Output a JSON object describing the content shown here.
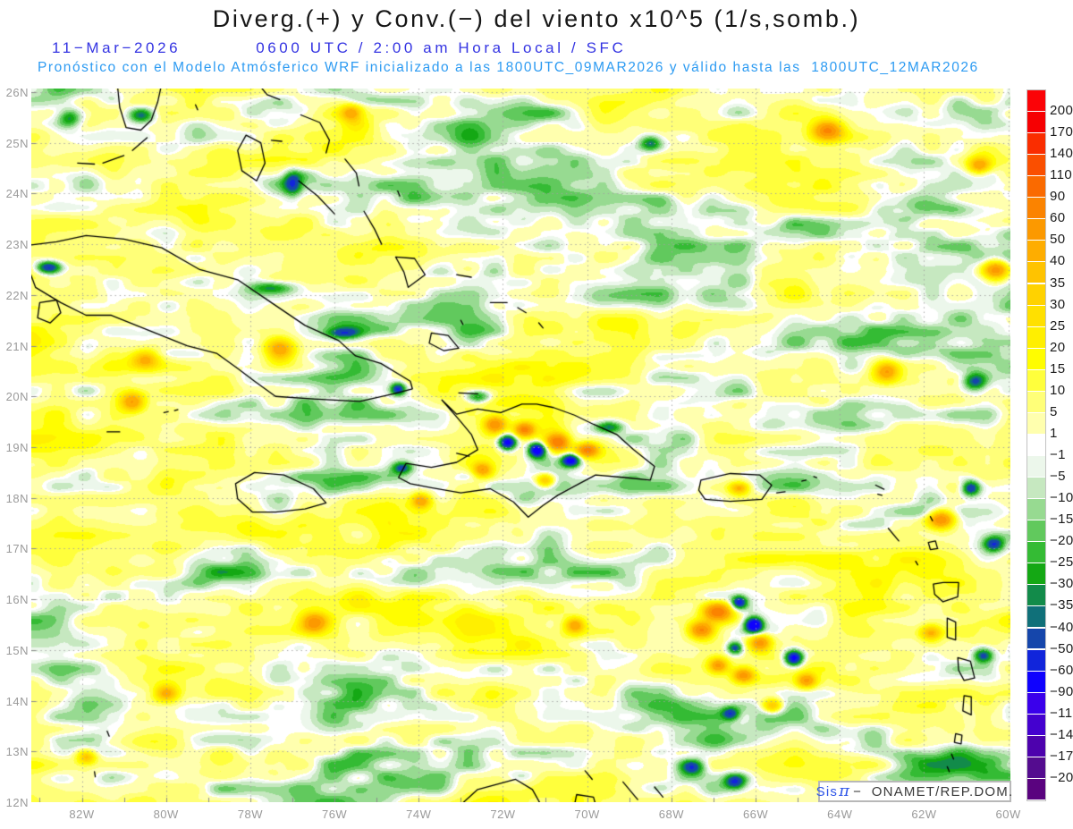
{
  "title": "Diverg.(+) y Conv.(−) del viento x10^5 (1/s,somb.)",
  "header": {
    "date": "11−Mar−2026",
    "time": "0600 UTC / 2:00 am Hora Local / SFC",
    "forecast": "Pronóstico con el Modelo Atmósferico WRF inicializado a las 1800UTC_09MAR2026 y válido hasta las  1800UTC_12MAR2026"
  },
  "attribution": {
    "prefix": "Sis",
    "pi": "π",
    "rest": "−  ONAMET/REP.DOM."
  },
  "chart_data": {
    "type": "heatmap",
    "title": "Diverg.(+) y Conv.(−) del viento x10^5 (1/s,somb.)",
    "units": "x10^5 (1/s), shaded",
    "level": "SFC",
    "valid": "11−Mar−2026 0600 UTC / 2:00 am Hora Local",
    "model_run": "1800UTC_09MAR2026",
    "valid_until": "1800UTC_12MAR2026",
    "lat_ticks": [
      "26N",
      "25N",
      "24N",
      "23N",
      "22N",
      "21N",
      "20N",
      "19N",
      "18N",
      "17N",
      "16N",
      "15N",
      "14N",
      "13N",
      "12N"
    ],
    "lon_ticks": [
      "82W",
      "80W",
      "78W",
      "76W",
      "74W",
      "72W",
      "70W",
      "68W",
      "66W",
      "64W",
      "62W",
      "60W"
    ],
    "extent": {
      "lon_min": -83.2,
      "lon_max": -59.95,
      "lat_min": 12.0,
      "lat_max": 26.07
    },
    "grid": {
      "lat_step": 1,
      "lon_step": 2
    },
    "legend_labels": [
      "200",
      "170",
      "140",
      "110",
      "90",
      "60",
      "50",
      "40",
      "35",
      "30",
      "25",
      "20",
      "15",
      "10",
      "5",
      "1",
      "−1",
      "−5",
      "−10",
      "−15",
      "−20",
      "−25",
      "−30",
      "−35",
      "−40",
      "−50",
      "−60",
      "−90",
      "−110",
      "−140",
      "−170",
      "−200"
    ],
    "legend_colors": [
      "#FB0307",
      "#F60002",
      "#FA2D00",
      "#FA4F00",
      "#FA6A00",
      "#FB8300",
      "#FC9900",
      "#FEAD00",
      "#FFC300",
      "#FFD200",
      "#FFE000",
      "#FFEF00",
      "#FFFD00",
      "#FFFF3C",
      "#FFFF78",
      "#FFFFAE",
      "#FFFFFF",
      "#ECF7EB",
      "#C6E8C0",
      "#97DA91",
      "#61C95D",
      "#34BB34",
      "#14A814",
      "#128B4A",
      "#107079",
      "#1546AB",
      "#1125DB",
      "#0F02FE",
      "#3A00EB",
      "#4401CF",
      "#4D02AD",
      "#540C8F",
      "#5A037F"
    ],
    "hotspot_format": [
      "lon",
      "lat",
      "amplitude_x10^5_s-1",
      "sigma_x_px",
      "sigma_y_px"
    ],
    "hotspots": [
      [
        -82.8,
        22.55,
        -60,
        10,
        5
      ],
      [
        -80.8,
        19.9,
        48,
        10,
        8
      ],
      [
        -77.3,
        20.9,
        45,
        12,
        9
      ],
      [
        -80.5,
        20.75,
        40,
        12,
        8
      ],
      [
        -75.6,
        25.6,
        40,
        9,
        7
      ],
      [
        -64.3,
        25.25,
        55,
        12,
        8
      ],
      [
        -60.7,
        24.55,
        42,
        9,
        7
      ],
      [
        -60.3,
        22.5,
        58,
        11,
        9
      ],
      [
        -62.9,
        20.5,
        45,
        10,
        8
      ],
      [
        -60.8,
        20.3,
        -45,
        9,
        7
      ],
      [
        -72.2,
        19.45,
        55,
        9,
        7
      ],
      [
        -71.9,
        19.1,
        -75,
        7,
        6
      ],
      [
        -71.5,
        19.35,
        58,
        8,
        6
      ],
      [
        -71.2,
        18.95,
        -80,
        7,
        6
      ],
      [
        -70.7,
        19.1,
        62,
        9,
        7
      ],
      [
        -70.4,
        18.75,
        -70,
        7,
        5
      ],
      [
        -70.0,
        18.95,
        55,
        9,
        6
      ],
      [
        -71.0,
        18.35,
        50,
        8,
        6
      ],
      [
        -72.5,
        18.55,
        42,
        8,
        6
      ],
      [
        -73.95,
        17.95,
        42,
        8,
        6
      ],
      [
        -76.5,
        15.55,
        50,
        11,
        8
      ],
      [
        -80.0,
        14.15,
        45,
        10,
        7
      ],
      [
        -81.9,
        12.9,
        35,
        8,
        6
      ],
      [
        -70.3,
        15.5,
        40,
        8,
        6
      ],
      [
        -67.3,
        15.4,
        58,
        10,
        7
      ],
      [
        -66.9,
        15.75,
        68,
        12,
        8
      ],
      [
        -66.4,
        15.95,
        -55,
        6,
        5
      ],
      [
        -66.05,
        15.5,
        -85,
        7,
        6
      ],
      [
        -66.5,
        15.05,
        -50,
        6,
        5
      ],
      [
        -65.9,
        15.15,
        52,
        9,
        7
      ],
      [
        -66.9,
        14.7,
        48,
        8,
        6
      ],
      [
        -66.3,
        14.5,
        52,
        9,
        6
      ],
      [
        -65.1,
        14.85,
        -72,
        7,
        6
      ],
      [
        -64.8,
        14.4,
        45,
        8,
        6
      ],
      [
        -65.6,
        13.9,
        40,
        8,
        6
      ],
      [
        -66.6,
        13.75,
        -45,
        7,
        5
      ],
      [
        -61.6,
        17.6,
        62,
        11,
        8
      ],
      [
        -60.9,
        18.2,
        -55,
        7,
        6
      ],
      [
        -60.35,
        17.1,
        -48,
        8,
        6
      ],
      [
        -61.85,
        15.35,
        48,
        9,
        6
      ],
      [
        -60.6,
        14.9,
        -52,
        8,
        6
      ],
      [
        -67.5,
        12.7,
        -45,
        9,
        6
      ],
      [
        -66.5,
        12.4,
        -48,
        8,
        6
      ],
      [
        -74.5,
        20.15,
        -55,
        6,
        5
      ],
      [
        -75.8,
        21.25,
        -42,
        14,
        5
      ],
      [
        -77.5,
        22.15,
        -36,
        18,
        5
      ],
      [
        -66.4,
        18.2,
        38,
        8,
        5
      ],
      [
        -80.6,
        25.55,
        -40,
        10,
        6
      ],
      [
        -82.3,
        25.5,
        -35,
        9,
        7
      ],
      [
        -68.5,
        25.0,
        -40,
        9,
        6
      ],
      [
        -77.0,
        24.2,
        -40,
        7,
        10
      ],
      [
        -74.4,
        18.6,
        -45,
        8,
        5
      ],
      [
        -72.6,
        20.0,
        -40,
        10,
        5
      ],
      [
        -69.5,
        19.4,
        -45,
        12,
        5
      ]
    ]
  },
  "colors": {
    "title_text": "#161616",
    "date_line": "#3434E2",
    "forecast_line": "#2D9BF2",
    "axis_label": "#9A9A9A",
    "grid_dots": "#A0A0A0",
    "coastline": "#000000",
    "attribution_brand": "#2F56E8",
    "attribution_text": "#3A3A3A"
  }
}
